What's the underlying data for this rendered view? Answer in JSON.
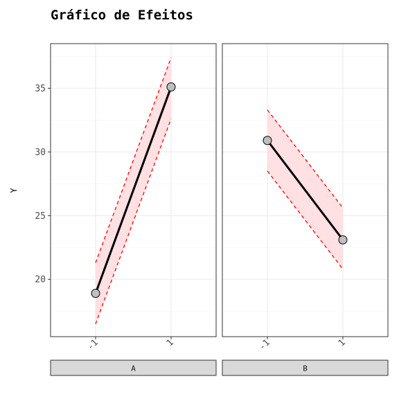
{
  "chart_data": {
    "type": "line",
    "title": "Gráfico de Efeitos",
    "xlabel": "",
    "ylabel": "Y",
    "ylim": [
      15.5,
      38.5
    ],
    "yticks": [
      20,
      25,
      30,
      35
    ],
    "grid": true,
    "legend": "none",
    "colors": {
      "line": "#000000",
      "band_fill": "#ffe0e3",
      "band_edge": "#ff0000",
      "point_fill": "#bfbfbf",
      "strip_fill": "#d9d9d9",
      "grid_major": "#ebebeb",
      "grid_minor": "#f5f5f5"
    },
    "panels": [
      {
        "strip_label": "A",
        "x": [
          "-1",
          "1"
        ],
        "y": [
          18.9,
          35.1
        ],
        "lower": [
          16.5,
          32.6
        ],
        "upper": [
          21.3,
          37.4
        ]
      },
      {
        "strip_label": "B",
        "x": [
          "-1",
          "1"
        ],
        "y": [
          30.9,
          23.1
        ],
        "lower": [
          28.5,
          20.8
        ],
        "upper": [
          33.3,
          25.6
        ]
      }
    ]
  }
}
